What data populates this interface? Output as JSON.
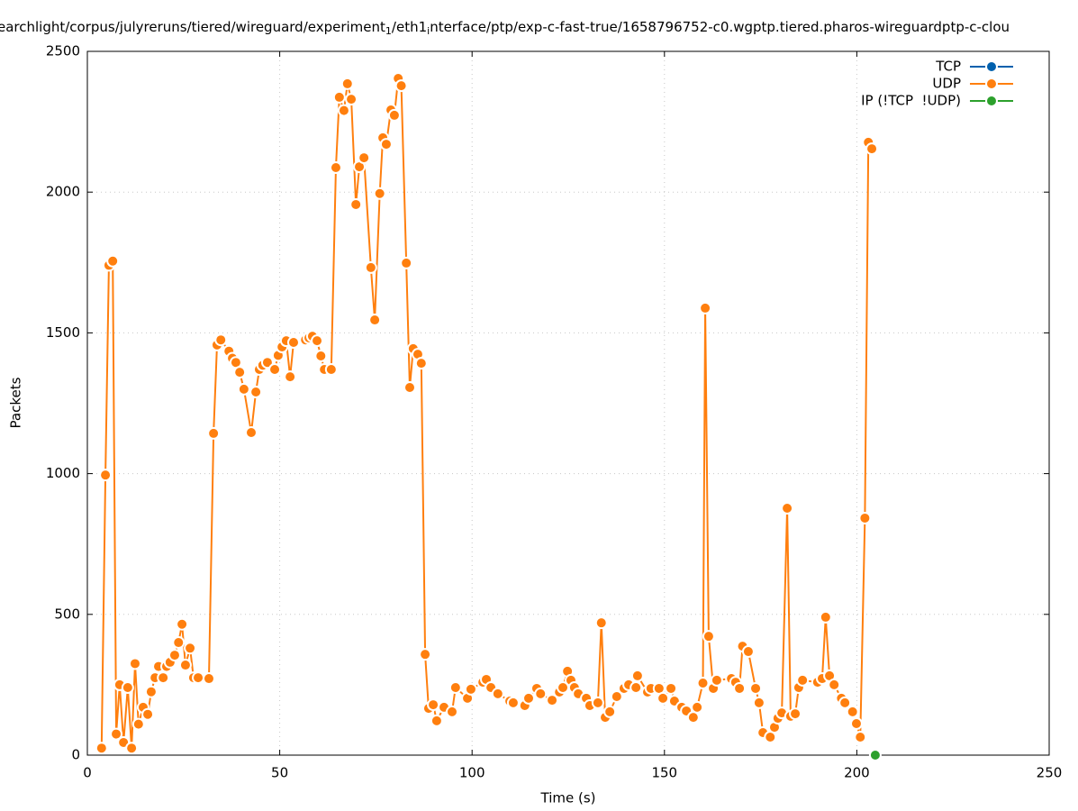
{
  "chart_data": {
    "type": "line",
    "title_parts": [
      "earchlight/corpus/julyreruns/tiered/wireguard/experiment",
      "1",
      "/eth1",
      "i",
      "nterface/ptp/exp-c-fast-true/1658796752-c0.wgptp.tiered.pharos-wireguardptp-c-clou"
    ],
    "x_label": "Time (s)",
    "y_label": "Packets",
    "xlim": [
      0,
      250
    ],
    "xticks": [
      0,
      50,
      100,
      150,
      200,
      250
    ],
    "ylim": [
      0,
      2500
    ],
    "yticks": [
      0,
      500,
      1000,
      1500,
      2000,
      2500
    ],
    "grid": true,
    "legend": "top-right",
    "series": [
      {
        "name": "TCP",
        "color": "#0060ad",
        "x": [],
        "values": []
      },
      {
        "name": "UDP",
        "color": "#ff7f0e",
        "x": [
          3.7,
          4.7,
          5.6,
          6.6,
          7.5,
          8.4,
          9.4,
          10.5,
          11.5,
          12.4,
          13.3,
          14.5,
          15.7,
          16.6,
          17.6,
          18.5,
          19.7,
          20.6,
          21.5,
          22.7,
          23.7,
          24.6,
          25.5,
          26.7,
          27.6,
          28.8,
          31.6,
          32.8,
          33.7,
          34.7,
          36.8,
          37.7,
          38.6,
          39.6,
          40.7,
          42.6,
          43.8,
          44.7,
          45.6,
          46.8,
          48.7,
          49.6,
          50.6,
          51.7,
          52.7,
          53.6,
          56.7,
          57.6,
          58.5,
          59.7,
          60.7,
          61.6,
          63.4,
          64.6,
          65.5,
          66.7,
          67.6,
          68.6,
          69.8,
          70.7,
          71.9,
          73.7,
          74.7,
          76.0,
          76.8,
          77.7,
          78.9,
          79.8,
          80.8,
          81.6,
          82.9,
          83.8,
          84.7,
          85.9,
          86.8,
          87.8,
          88.7,
          89.9,
          90.8,
          92.7,
          94.8,
          95.7,
          98.8,
          99.7,
          102.8,
          103.7,
          104.9,
          106.7,
          109.8,
          110.7,
          113.7,
          114.7,
          116.8,
          117.8,
          120.8,
          122.7,
          123.6,
          124.8,
          125.7,
          126.6,
          127.6,
          129.7,
          130.6,
          132.7,
          133.6,
          134.6,
          135.8,
          137.6,
          139.5,
          140.7,
          142.6,
          143.0,
          145.6,
          146.5,
          148.6,
          149.6,
          151.7,
          152.6,
          154.5,
          155.7,
          157.5,
          158.5,
          160.0,
          160.6,
          161.5,
          162.7,
          163.6,
          167.4,
          168.5,
          169.5,
          170.3,
          171.8,
          173.7,
          174.6,
          175.6,
          177.5,
          178.6,
          179.5,
          180.5,
          181.9,
          182.8,
          184.0,
          184.9,
          185.9,
          189.8,
          191.0,
          191.9,
          192.9,
          194.1,
          196.0,
          196.9,
          198.9,
          199.9,
          200.9,
          202.1,
          203.0,
          203.9
        ],
        "values": [
          25,
          995,
          1740,
          1755,
          75,
          250,
          45,
          240,
          25,
          325,
          110,
          170,
          145,
          225,
          275,
          315,
          275,
          315,
          330,
          355,
          400,
          465,
          320,
          380,
          275,
          275,
          272,
          1143,
          1457,
          1475,
          1435,
          1410,
          1395,
          1360,
          1300,
          1146,
          1290,
          1370,
          1385,
          1395,
          1370,
          1420,
          1450,
          1472,
          1344,
          1466,
          1475,
          1482,
          1488,
          1472,
          1418,
          1370,
          1370,
          2087,
          2337,
          2290,
          2385,
          2330,
          1956,
          2090,
          2122,
          1732,
          1546,
          1995,
          2193,
          2170,
          2292,
          2273,
          2404,
          2378,
          1748,
          1306,
          1444,
          1424,
          1392,
          358,
          166,
          179,
          122,
          170,
          154,
          240,
          202,
          234,
          259,
          269,
          240,
          218,
          192,
          186,
          176,
          202,
          237,
          218,
          195,
          224,
          240,
          298,
          266,
          240,
          218,
          202,
          176,
          186,
          470,
          134,
          154,
          208,
          237,
          250,
          240,
          282,
          224,
          237,
          237,
          202,
          237,
          192,
          170,
          157,
          134,
          170,
          256,
          1588,
          422,
          237,
          266,
          272,
          259,
          237,
          387,
          368,
          237,
          186,
          80,
          64,
          99,
          131,
          150,
          877,
          138,
          147,
          240,
          266,
          259,
          272,
          490,
          282,
          250,
          202,
          186,
          154,
          112,
          64,
          842,
          2177,
          2154
        ]
      },
      {
        "name": "IP (!TCP  !UDP)",
        "color": "#2ca02c",
        "x": [
          204.8
        ],
        "values": [
          0
        ]
      }
    ]
  }
}
